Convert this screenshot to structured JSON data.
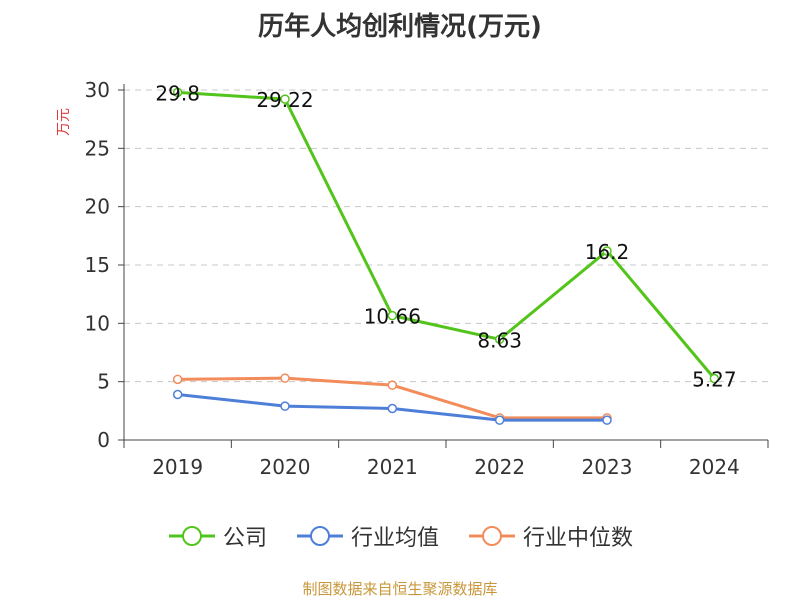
{
  "chart_data": {
    "type": "line",
    "title": "历年人均创利情况(万元)",
    "ylabel": "万元",
    "xlabel": "",
    "categories": [
      "2019",
      "2020",
      "2021",
      "2022",
      "2023",
      "2024"
    ],
    "ylim": [
      0,
      30
    ],
    "yticks": [
      0,
      5,
      10,
      15,
      20,
      25,
      30
    ],
    "grid": true,
    "legend_position": "bottom",
    "series": [
      {
        "name": "公司",
        "color": "#52c41a",
        "values": [
          29.8,
          29.22,
          10.66,
          8.63,
          16.2,
          5.27
        ],
        "labels": [
          "29.8",
          "29.22",
          "10.66",
          "8.63",
          "16.2",
          "5.27"
        ]
      },
      {
        "name": "行业均值",
        "color": "#4e7fd8",
        "values": [
          3.9,
          2.9,
          2.7,
          1.7,
          1.7,
          null
        ]
      },
      {
        "name": "行业中位数",
        "color": "#f28c5a",
        "values": [
          5.2,
          5.3,
          4.7,
          1.9,
          1.9,
          null
        ]
      }
    ]
  },
  "source": "制图数据来自恒生聚源数据库"
}
